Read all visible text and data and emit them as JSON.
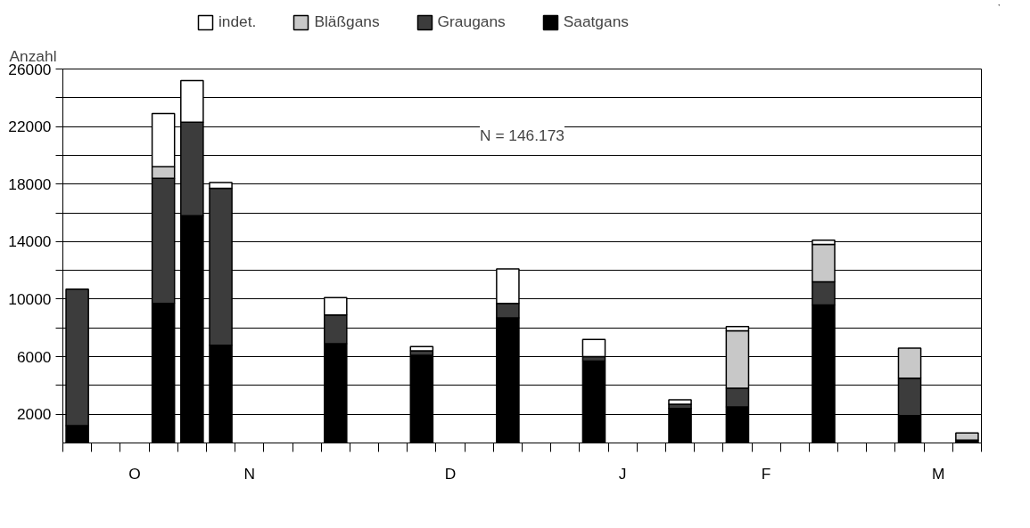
{
  "chart_data": {
    "type": "bar",
    "stacked": true,
    "ylabel": "Anzahl",
    "annotations": [
      "N = 146.173"
    ],
    "categories": [
      null,
      null,
      "O",
      null,
      null,
      null,
      "N",
      null,
      null,
      null,
      null,
      null,
      null,
      "D",
      null,
      null,
      null,
      null,
      null,
      "J",
      null,
      null,
      null,
      null,
      "F",
      null,
      null,
      null,
      null,
      null,
      "M",
      null
    ],
    "series": [
      {
        "name": "Saatgans",
        "color": "#000000",
        "values": [
          1200,
          null,
          null,
          9700,
          15800,
          6800,
          null,
          null,
          null,
          6900,
          null,
          null,
          6100,
          null,
          null,
          8700,
          null,
          null,
          5700,
          null,
          null,
          2400,
          null,
          2500,
          null,
          null,
          9600,
          null,
          null,
          1900,
          null,
          200
        ]
      },
      {
        "name": "Graugans",
        "color": "#3c3c3c",
        "values": [
          9500,
          null,
          null,
          8700,
          6500,
          10900,
          null,
          null,
          null,
          2000,
          null,
          null,
          300,
          null,
          null,
          1000,
          null,
          null,
          300,
          null,
          null,
          300,
          null,
          1300,
          null,
          null,
          1600,
          null,
          null,
          2600,
          null,
          null
        ]
      },
      {
        "name": "Bläßgans",
        "color": "#c8c8c8",
        "values": [
          null,
          null,
          null,
          800,
          null,
          null,
          null,
          null,
          null,
          null,
          null,
          null,
          null,
          null,
          null,
          null,
          null,
          null,
          null,
          null,
          null,
          null,
          null,
          4000,
          null,
          null,
          2600,
          null,
          null,
          2100,
          null,
          500
        ]
      },
      {
        "name": "indet.",
        "color": "#ffffff",
        "values": [
          null,
          null,
          null,
          3700,
          2900,
          400,
          null,
          null,
          null,
          1200,
          null,
          null,
          300,
          null,
          null,
          2400,
          null,
          null,
          1200,
          null,
          null,
          300,
          null,
          300,
          null,
          null,
          300,
          null,
          null,
          null,
          null,
          null
        ]
      }
    ],
    "ylim": [
      0,
      26000
    ],
    "yticks": [
      2000,
      {
        "value": 4000,
        "label": null
      },
      6000,
      {
        "value": 8000,
        "label": null
      },
      10000,
      {
        "value": 12000,
        "label": null
      },
      14000,
      {
        "value": 16000,
        "label": null
      },
      18000,
      {
        "value": 20000,
        "label": null
      },
      22000,
      {
        "value": 24000,
        "label": null
      },
      26000
    ],
    "grid": "y",
    "legend": "top"
  }
}
